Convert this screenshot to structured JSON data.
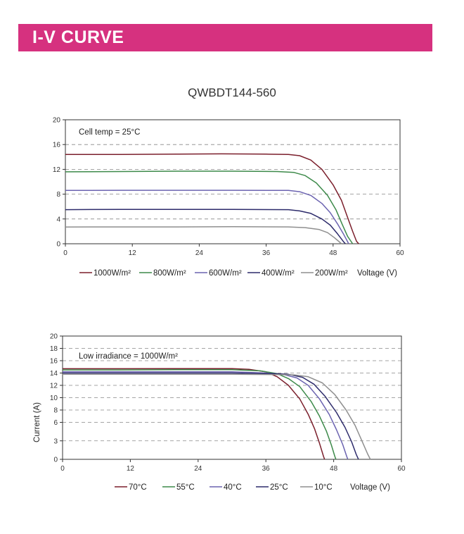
{
  "header": {
    "title": "I-V CURVE"
  },
  "model": "QWBDT144-560",
  "colors": {
    "banner": "#d6317f",
    "c1000": "#7b1f2c",
    "c800": "#3d8a4a",
    "c600": "#6b63b0",
    "c400": "#2d2b6b",
    "c200": "#8f8f8f"
  },
  "chart_data": [
    {
      "type": "line",
      "title": "",
      "note": "Cell temp = 25°C",
      "xlabel": "Voltage (V)",
      "ylabel": "",
      "xlim": [
        0,
        60
      ],
      "ylim": [
        0,
        20
      ],
      "x_ticks": [
        "0",
        "12",
        "24",
        "36",
        "48",
        "60"
      ],
      "y_ticks": [
        "0",
        "4",
        "8",
        "12",
        "16",
        "20"
      ],
      "grid": "dashed horizontal",
      "series": [
        {
          "name": "1000W/m²",
          "color": "#7b1f2c",
          "points": [
            [
              0,
              14.4
            ],
            [
              10,
              14.4
            ],
            [
              20,
              14.45
            ],
            [
              28,
              14.5
            ],
            [
              36,
              14.45
            ],
            [
              40,
              14.4
            ],
            [
              42,
              14.2
            ],
            [
              44,
              13.5
            ],
            [
              46,
              12.0
            ],
            [
              48,
              9.5
            ],
            [
              49.5,
              7.0
            ],
            [
              50.5,
              4.5
            ],
            [
              51.5,
              2.0
            ],
            [
              52.2,
              0.4
            ],
            [
              52.6,
              0
            ]
          ]
        },
        {
          "name": "800W/m²",
          "color": "#3d8a4a",
          "points": [
            [
              0,
              11.6
            ],
            [
              10,
              11.65
            ],
            [
              20,
              11.7
            ],
            [
              30,
              11.7
            ],
            [
              38,
              11.65
            ],
            [
              41,
              11.5
            ],
            [
              43,
              11.0
            ],
            [
              45,
              9.8
            ],
            [
              47,
              7.8
            ],
            [
              48.5,
              5.5
            ],
            [
              49.6,
              3.2
            ],
            [
              50.6,
              1.2
            ],
            [
              51.5,
              0
            ]
          ]
        },
        {
          "name": "600W/m²",
          "color": "#6b63b0",
          "points": [
            [
              0,
              8.6
            ],
            [
              10,
              8.62
            ],
            [
              20,
              8.62
            ],
            [
              30,
              8.62
            ],
            [
              40,
              8.6
            ],
            [
              42,
              8.4
            ],
            [
              44,
              7.8
            ],
            [
              46,
              6.5
            ],
            [
              47.5,
              5.0
            ],
            [
              48.8,
              3.2
            ],
            [
              49.9,
              1.5
            ],
            [
              50.8,
              0
            ]
          ]
        },
        {
          "name": "400W/m²",
          "color": "#2d2b6b",
          "points": [
            [
              0,
              5.5
            ],
            [
              10,
              5.55
            ],
            [
              20,
              5.55
            ],
            [
              30,
              5.55
            ],
            [
              40,
              5.5
            ],
            [
              42,
              5.3
            ],
            [
              44,
              4.9
            ],
            [
              46,
              4.0
            ],
            [
              47.5,
              3.0
            ],
            [
              48.8,
              1.6
            ],
            [
              49.9,
              0.3
            ],
            [
              50.2,
              0
            ]
          ]
        },
        {
          "name": "200W/m²",
          "color": "#8f8f8f",
          "points": [
            [
              0,
              2.7
            ],
            [
              10,
              2.72
            ],
            [
              20,
              2.72
            ],
            [
              30,
              2.75
            ],
            [
              40,
              2.72
            ],
            [
              43,
              2.6
            ],
            [
              45.5,
              2.3
            ],
            [
              47,
              1.8
            ],
            [
              48.2,
              1.0
            ],
            [
              49,
              0.4
            ],
            [
              49.5,
              0
            ]
          ]
        }
      ]
    },
    {
      "type": "line",
      "title": "",
      "note": "Low irradiance = 1000W/m²",
      "xlabel": "Voltage (V)",
      "ylabel": "Current (A)",
      "xlim": [
        0,
        60
      ],
      "ylim": [
        0,
        20
      ],
      "x_ticks": [
        "0",
        "12",
        "24",
        "36",
        "48",
        "60"
      ],
      "y_ticks": [
        "0",
        "3",
        "6",
        "8",
        "10",
        "12",
        "14",
        "16",
        "18",
        "20"
      ],
      "grid": "dashed horizontal",
      "series": [
        {
          "name": "70°C",
          "color": "#7b1f2c",
          "points": [
            [
              0,
              14.7
            ],
            [
              10,
              14.7
            ],
            [
              20,
              14.72
            ],
            [
              30,
              14.72
            ],
            [
              33,
              14.6
            ],
            [
              36,
              14.2
            ],
            [
              38,
              13.4
            ],
            [
              40,
              12.0
            ],
            [
              42,
              9.8
            ],
            [
              43.5,
              7.3
            ],
            [
              44.6,
              5.0
            ],
            [
              45.5,
              2.6
            ],
            [
              46.2,
              0.5
            ],
            [
              46.4,
              0
            ]
          ]
        },
        {
          "name": "55°C",
          "color": "#3d8a4a",
          "points": [
            [
              0,
              14.5
            ],
            [
              10,
              14.5
            ],
            [
              20,
              14.55
            ],
            [
              30,
              14.55
            ],
            [
              35,
              14.35
            ],
            [
              38,
              13.9
            ],
            [
              40,
              13.1
            ],
            [
              42,
              11.8
            ],
            [
              44,
              9.4
            ],
            [
              45.5,
              7.0
            ],
            [
              46.7,
              4.6
            ],
            [
              47.6,
              2.3
            ],
            [
              48.2,
              0.5
            ],
            [
              48.4,
              0
            ]
          ]
        },
        {
          "name": "40°C",
          "color": "#6b63b0",
          "points": [
            [
              0,
              14.2
            ],
            [
              10,
              14.2
            ],
            [
              20,
              14.2
            ],
            [
              30,
              14.2
            ],
            [
              36,
              14.0
            ],
            [
              39,
              13.8
            ],
            [
              41.5,
              13.2
            ],
            [
              43.5,
              12.0
            ],
            [
              45.5,
              9.8
            ],
            [
              47.2,
              7.3
            ],
            [
              48.5,
              4.8
            ],
            [
              49.6,
              2.4
            ],
            [
              50.3,
              0.5
            ],
            [
              50.5,
              0
            ]
          ]
        },
        {
          "name": "25°C",
          "color": "#2d2b6b",
          "points": [
            [
              0,
              14.0
            ],
            [
              10,
              14.0
            ],
            [
              20,
              14.0
            ],
            [
              30,
              14.0
            ],
            [
              37,
              13.9
            ],
            [
              40,
              13.8
            ],
            [
              42.5,
              13.3
            ],
            [
              44.5,
              12.2
            ],
            [
              46.5,
              10.2
            ],
            [
              48.5,
              7.6
            ],
            [
              50,
              5.2
            ],
            [
              51.2,
              2.8
            ],
            [
              52,
              0.8
            ],
            [
              52.4,
              0
            ]
          ]
        },
        {
          "name": "10°C",
          "color": "#8f8f8f",
          "points": [
            [
              0,
              13.8
            ],
            [
              10,
              13.8
            ],
            [
              20,
              13.8
            ],
            [
              30,
              13.8
            ],
            [
              38,
              13.75
            ],
            [
              41,
              13.7
            ],
            [
              43.5,
              13.4
            ],
            [
              46,
              12.4
            ],
            [
              48.2,
              10.5
            ],
            [
              50.2,
              8.0
            ],
            [
              51.8,
              5.5
            ],
            [
              53,
              3.0
            ],
            [
              54,
              0.9
            ],
            [
              54.5,
              0
            ]
          ]
        }
      ]
    }
  ]
}
